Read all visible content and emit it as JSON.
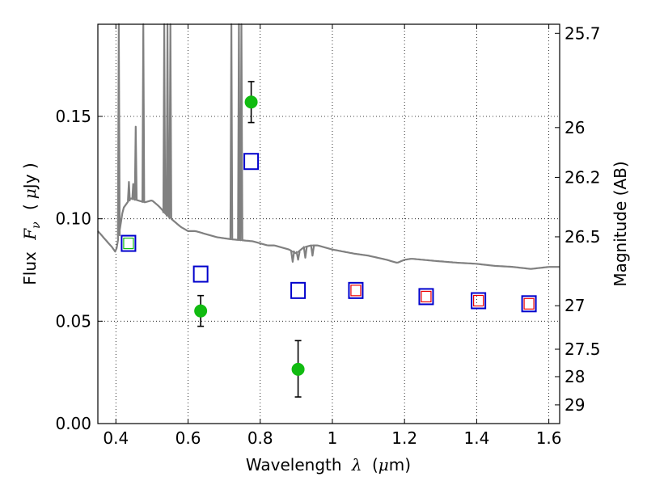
{
  "chart_data": {
    "type": "scatter",
    "title": "",
    "xlabel": {
      "prefix": "Wavelength",
      "symbol": "λ",
      "unit_open": "(",
      "unit_mu": "μ",
      "unit_rest": "m)"
    },
    "ylabel": {
      "prefix": "Flux",
      "symbol": "F",
      "subscript": "ν",
      "unit_open": "(",
      "unit_mu": "μ",
      "unit_rest": "Jy )"
    },
    "y2label": "Magnitude (AB)",
    "xlim": [
      0.35,
      1.63
    ],
    "ylim": [
      0.0,
      0.195
    ],
    "grid": true,
    "x_ticks": [
      {
        "value": 0.4,
        "label": "0.4"
      },
      {
        "value": 0.6,
        "label": "0.6"
      },
      {
        "value": 0.8,
        "label": "0.8"
      },
      {
        "value": 1.0,
        "label": "1"
      },
      {
        "value": 1.2,
        "label": "1.2"
      },
      {
        "value": 1.4,
        "label": "1.4"
      },
      {
        "value": 1.6,
        "label": "1.6"
      }
    ],
    "y_ticks": [
      {
        "value": 0.0,
        "label": "0.00"
      },
      {
        "value": 0.05,
        "label": "0.05"
      },
      {
        "value": 0.1,
        "label": "0.10"
      },
      {
        "value": 0.15,
        "label": "0.15"
      }
    ],
    "y2_ticks": [
      {
        "value": 25.7,
        "label": "25.7"
      },
      {
        "value": 26.0,
        "label": "26"
      },
      {
        "value": 26.2,
        "label": "26.2"
      },
      {
        "value": 26.5,
        "label": "26.5"
      },
      {
        "value": 27.0,
        "label": "27"
      },
      {
        "value": 27.5,
        "label": "27.5"
      },
      {
        "value": 28.0,
        "label": "28"
      },
      {
        "value": 29.0,
        "label": "29"
      }
    ],
    "series": [
      {
        "kind": "observed",
        "color": "#11bb11",
        "points": [
          {
            "x": 0.635,
            "y": 0.055,
            "err_lo": 0.0475,
            "err_hi": 0.0625
          },
          {
            "x": 0.775,
            "y": 0.157,
            "err_lo": 0.147,
            "err_hi": 0.167
          },
          {
            "x": 0.905,
            "y": 0.0265,
            "err_lo": 0.013,
            "err_hi": 0.0405
          }
        ]
      },
      {
        "kind": "model_photometry",
        "color": "#0000cc",
        "points": [
          {
            "x": 0.435,
            "y": 0.088
          },
          {
            "x": 0.635,
            "y": 0.073
          },
          {
            "x": 0.775,
            "y": 0.128
          },
          {
            "x": 0.905,
            "y": 0.065
          },
          {
            "x": 1.065,
            "y": 0.065
          },
          {
            "x": 1.26,
            "y": 0.062
          },
          {
            "x": 1.405,
            "y": 0.06
          },
          {
            "x": 1.545,
            "y": 0.0585
          }
        ]
      },
      {
        "kind": "inner_marker",
        "points": [
          {
            "x": 0.435,
            "y": 0.088,
            "color": "#11bb11"
          },
          {
            "x": 1.065,
            "y": 0.065,
            "color": "#ee0000"
          },
          {
            "x": 1.26,
            "y": 0.062,
            "color": "#ee0000"
          },
          {
            "x": 1.405,
            "y": 0.06,
            "color": "#ee0000"
          },
          {
            "x": 1.545,
            "y": 0.0585,
            "color": "#ee0000"
          }
        ]
      }
    ],
    "sed_model": {
      "color": "#808080",
      "continuum": [
        [
          0.35,
          0.094
        ],
        [
          0.37,
          0.09
        ],
        [
          0.39,
          0.086
        ],
        [
          0.4,
          0.0835
        ],
        [
          0.41,
          0.094
        ],
        [
          0.42,
          0.105
        ],
        [
          0.44,
          0.11
        ],
        [
          0.46,
          0.109
        ],
        [
          0.48,
          0.108
        ],
        [
          0.5,
          0.109
        ],
        [
          0.52,
          0.106
        ],
        [
          0.54,
          0.102
        ],
        [
          0.56,
          0.099
        ],
        [
          0.58,
          0.096
        ],
        [
          0.6,
          0.094
        ],
        [
          0.62,
          0.094
        ],
        [
          0.64,
          0.093
        ],
        [
          0.66,
          0.092
        ],
        [
          0.68,
          0.091
        ],
        [
          0.7,
          0.0905
        ],
        [
          0.72,
          0.09
        ],
        [
          0.75,
          0.0895
        ],
        [
          0.78,
          0.089
        ],
        [
          0.8,
          0.088
        ],
        [
          0.82,
          0.087
        ],
        [
          0.84,
          0.087
        ],
        [
          0.86,
          0.086
        ],
        [
          0.88,
          0.085
        ],
        [
          0.9,
          0.083
        ],
        [
          0.92,
          0.086
        ],
        [
          0.94,
          0.087
        ],
        [
          0.96,
          0.087
        ],
        [
          0.98,
          0.086
        ],
        [
          1.0,
          0.085
        ],
        [
          1.03,
          0.084
        ],
        [
          1.06,
          0.083
        ],
        [
          1.1,
          0.082
        ],
        [
          1.15,
          0.08
        ],
        [
          1.18,
          0.0785
        ],
        [
          1.2,
          0.08
        ],
        [
          1.22,
          0.0805
        ],
        [
          1.28,
          0.0795
        ],
        [
          1.35,
          0.0785
        ],
        [
          1.4,
          0.078
        ],
        [
          1.45,
          0.077
        ],
        [
          1.5,
          0.0765
        ],
        [
          1.55,
          0.0755
        ],
        [
          1.6,
          0.0765
        ],
        [
          1.63,
          0.0765
        ]
      ],
      "emission_lines": [
        {
          "x": 0.408,
          "peak": 0.195
        },
        {
          "x": 0.436,
          "peak": 0.118
        },
        {
          "x": 0.448,
          "peak": 0.117
        },
        {
          "x": 0.455,
          "peak": 0.145
        },
        {
          "x": 0.476,
          "peak": 0.195
        },
        {
          "x": 0.534,
          "peak": 0.195
        },
        {
          "x": 0.543,
          "peak": 0.195
        },
        {
          "x": 0.551,
          "peak": 0.195
        },
        {
          "x": 0.72,
          "peak": 0.195
        },
        {
          "x": 0.741,
          "peak": 0.195
        },
        {
          "x": 0.748,
          "peak": 0.195
        }
      ],
      "absorption_notches": [
        {
          "x": 0.89,
          "depth": 0.079
        },
        {
          "x": 0.905,
          "depth": 0.08
        },
        {
          "x": 0.925,
          "depth": 0.081
        },
        {
          "x": 0.945,
          "depth": 0.082
        }
      ]
    }
  }
}
